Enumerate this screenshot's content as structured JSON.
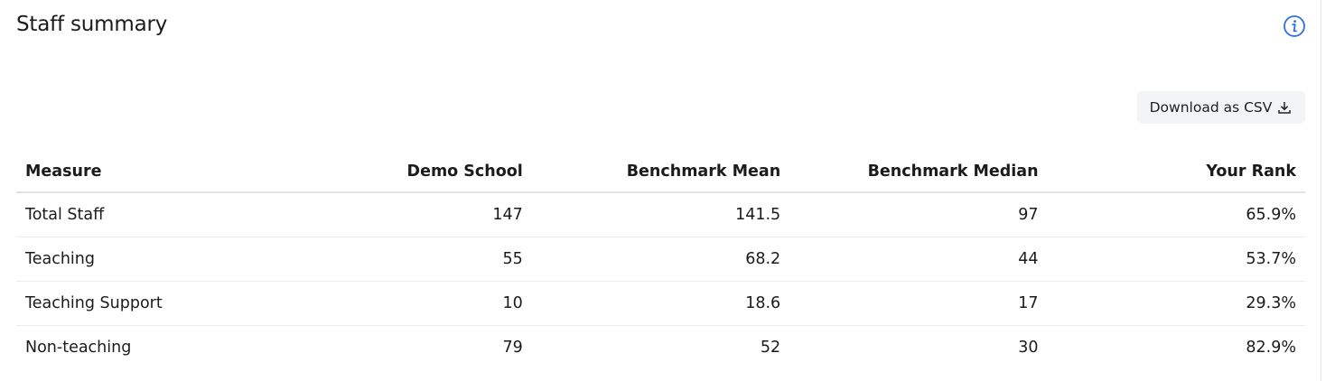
{
  "header": {
    "title": "Staff summary"
  },
  "toolbar": {
    "download": "Download as CSV"
  },
  "table": {
    "columns": [
      "Measure",
      "Demo School",
      "Benchmark Mean",
      "Benchmark Median",
      "Your Rank"
    ],
    "rows": [
      [
        "Total Staff",
        "147",
        "141.5",
        "97",
        "65.9%"
      ],
      [
        "Teaching",
        "55",
        "68.2",
        "44",
        "53.7%"
      ],
      [
        "Teaching Support",
        "10",
        "18.6",
        "17",
        "29.3%"
      ],
      [
        "Non-teaching",
        "79",
        "52",
        "30",
        "82.9%"
      ]
    ]
  }
}
